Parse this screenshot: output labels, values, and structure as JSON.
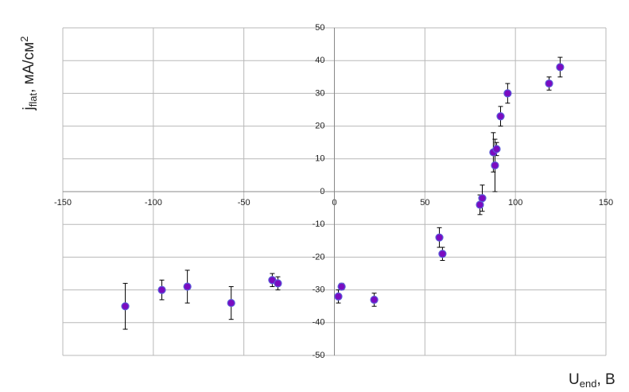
{
  "chart_data": {
    "type": "scatter",
    "x_label": {
      "main": "U",
      "sub": "end",
      "rest": ", В"
    },
    "y_label": {
      "main": "j",
      "sub": "flat",
      "rest": ", мА/см",
      "sup": "2"
    },
    "xlim": [
      -150,
      150
    ],
    "xticks": [
      -150,
      -100,
      -50,
      0,
      50,
      100,
      150
    ],
    "ylim": [
      -50,
      50
    ],
    "yticks": [
      -50,
      -40,
      -30,
      -20,
      -10,
      0,
      10,
      20,
      30,
      40,
      50
    ],
    "grid": true,
    "series": [
      {
        "color": "#7a0cc0",
        "edge": "#5a5ad8",
        "x": [
          -115.5,
          -95.3,
          -81.2,
          -57,
          -34.3,
          -31.2,
          2.2,
          4,
          22,
          58,
          59.7,
          80.4,
          81.7,
          87.8,
          89.6,
          88.7,
          91.8,
          95.7,
          118.6,
          124.7
        ],
        "y": [
          -35,
          -30,
          -29,
          -34,
          -27,
          -28,
          -32,
          -29,
          -33,
          -14,
          -19,
          -4,
          -2,
          12,
          13,
          8,
          23,
          30,
          33,
          38
        ],
        "err": [
          7,
          3,
          5,
          5,
          2,
          2,
          2,
          1,
          2,
          3,
          2,
          3,
          4,
          6,
          2,
          8,
          3,
          3,
          2,
          3
        ]
      }
    ]
  }
}
